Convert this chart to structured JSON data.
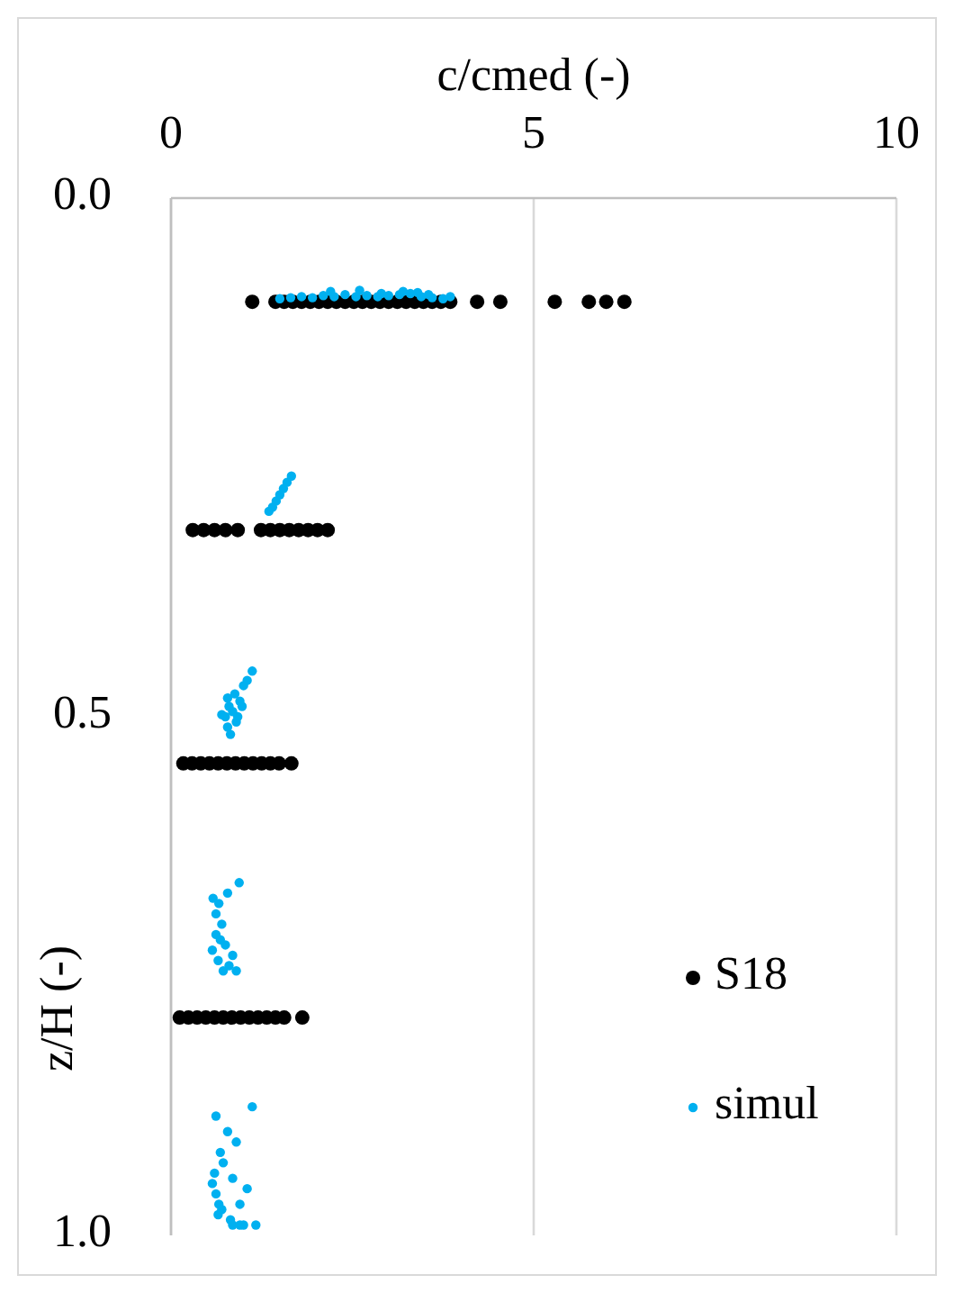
{
  "chart_data": {
    "type": "scatter",
    "xlabel": "c/cmed (-)",
    "ylabel": "z/H (-)",
    "xlim": [
      0,
      10
    ],
    "xticks": [
      0,
      5,
      10
    ],
    "ylim": [
      1,
      0
    ],
    "yticks": [
      {
        "value": 0,
        "label": "0.0"
      },
      {
        "value": 0.5,
        "label": "0.5"
      },
      {
        "value": 1,
        "label": "1.0"
      }
    ],
    "grid": "x",
    "legend": "right",
    "marker": "circle",
    "series": [
      {
        "name": "S18",
        "color": "#000000",
        "x": [
          1.12,
          1.44,
          1.56,
          1.68,
          1.8,
          1.92,
          2.04,
          2.16,
          2.28,
          2.4,
          2.52,
          2.64,
          2.76,
          2.88,
          3.0,
          3.12,
          3.24,
          3.36,
          3.48,
          3.6,
          3.72,
          3.85,
          4.22,
          4.54,
          5.29,
          5.76,
          6.0,
          6.25,
          0.3,
          0.45,
          0.6,
          0.75,
          0.92,
          1.24,
          1.37,
          1.5,
          1.63,
          1.76,
          1.89,
          2.02,
          2.16,
          0.17,
          0.29,
          0.41,
          0.53,
          0.65,
          0.77,
          0.89,
          1.01,
          1.13,
          1.25,
          1.37,
          1.49,
          1.66,
          0.12,
          0.24,
          0.36,
          0.48,
          0.6,
          0.72,
          0.84,
          0.96,
          1.08,
          1.2,
          1.32,
          1.44,
          1.56,
          1.81
        ],
        "values": [
          0.1,
          0.1,
          0.1,
          0.1,
          0.1,
          0.1,
          0.1,
          0.1,
          0.1,
          0.1,
          0.1,
          0.1,
          0.1,
          0.1,
          0.1,
          0.1,
          0.1,
          0.1,
          0.1,
          0.1,
          0.1,
          0.1,
          0.1,
          0.1,
          0.1,
          0.1,
          0.1,
          0.1,
          0.32,
          0.32,
          0.32,
          0.32,
          0.32,
          0.32,
          0.32,
          0.32,
          0.32,
          0.32,
          0.32,
          0.32,
          0.32,
          0.545,
          0.545,
          0.545,
          0.545,
          0.545,
          0.545,
          0.545,
          0.545,
          0.545,
          0.545,
          0.545,
          0.545,
          0.545,
          0.79,
          0.79,
          0.79,
          0.79,
          0.79,
          0.79,
          0.79,
          0.79,
          0.79,
          0.79,
          0.79,
          0.79,
          0.79,
          0.79
        ]
      },
      {
        "name": "simul",
        "color": "#00b0f0",
        "x": [
          1.5,
          1.65,
          1.8,
          1.95,
          2.1,
          2.25,
          2.4,
          2.55,
          2.7,
          2.85,
          3.0,
          3.15,
          3.3,
          3.45,
          3.6,
          3.75,
          3.85,
          2.2,
          2.6,
          2.9,
          3.2,
          3.4,
          3.55,
          1.35,
          1.4,
          1.45,
          1.5,
          1.55,
          1.6,
          1.66,
          0.82,
          0.78,
          0.75,
          0.8,
          0.85,
          0.9,
          0.95,
          1.0,
          0.88,
          0.78,
          1.05,
          1.12,
          0.7,
          0.92,
          0.98,
          0.57,
          0.65,
          0.72,
          0.8,
          0.68,
          0.62,
          0.7,
          0.75,
          0.85,
          0.9,
          0.62,
          0.66,
          0.58,
          0.94,
          0.78,
          1.0,
          0.57,
          0.62,
          0.66,
          0.7,
          0.65,
          0.82,
          0.6,
          0.85,
          0.95,
          0.72,
          0.68,
          0.9,
          0.78,
          1.05,
          0.85,
          1.17,
          0.95,
          1.12,
          0.62
        ],
        "values": [
          0.097,
          0.096,
          0.095,
          0.096,
          0.094,
          0.095,
          0.093,
          0.095,
          0.094,
          0.095,
          0.094,
          0.093,
          0.092,
          0.095,
          0.096,
          0.097,
          0.095,
          0.09,
          0.089,
          0.092,
          0.09,
          0.091,
          0.093,
          0.302,
          0.298,
          0.292,
          0.286,
          0.28,
          0.274,
          0.268,
          0.517,
          0.51,
          0.5,
          0.49,
          0.495,
          0.505,
          0.485,
          0.47,
          0.478,
          0.482,
          0.465,
          0.456,
          0.498,
          0.5,
          0.49,
          0.725,
          0.735,
          0.745,
          0.74,
          0.715,
          0.71,
          0.7,
          0.72,
          0.73,
          0.745,
          0.69,
          0.68,
          0.675,
          0.66,
          0.67,
          0.99,
          0.95,
          0.96,
          0.97,
          0.975,
          0.98,
          0.985,
          0.94,
          0.99,
          0.99,
          0.93,
          0.92,
          0.91,
          0.9,
          0.955,
          0.945,
          0.99,
          0.97,
          0.876,
          0.885
        ]
      }
    ]
  }
}
